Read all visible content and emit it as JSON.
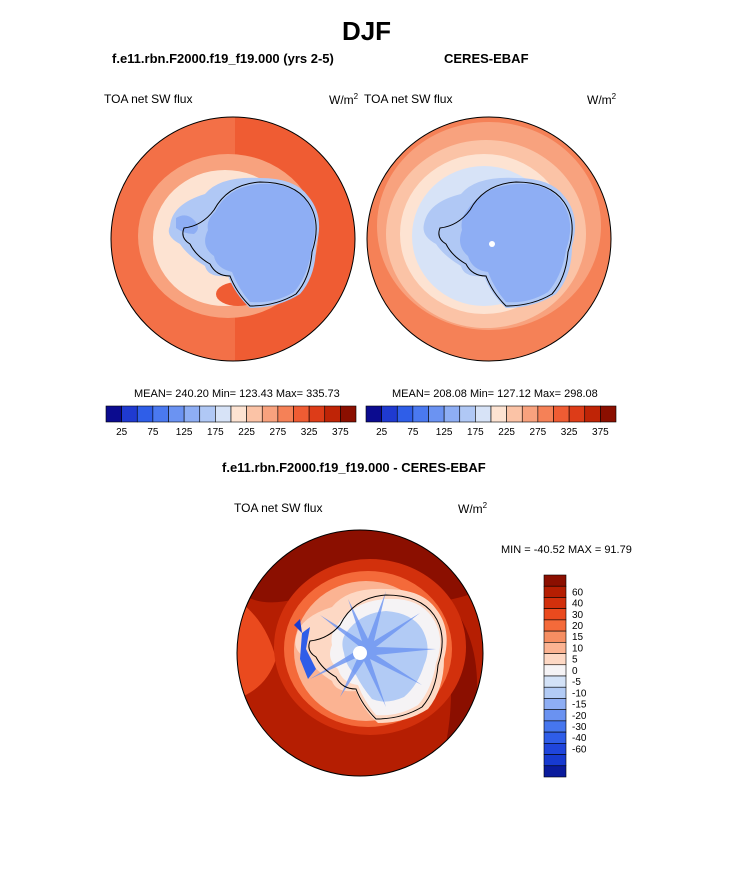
{
  "title": "DJF",
  "panels": [
    {
      "case": "f.e11.rbn.F2000.f19_f19.000 (yrs 2-5)",
      "variable": "TOA net SW flux",
      "units_base": "W/m",
      "units_exp": "2",
      "stats": "MEAN= 240.20  Min= 123.43  Max= 335.73"
    },
    {
      "case": "CERES-EBAF",
      "variable": "TOA net SW flux",
      "units_base": "W/m",
      "units_exp": "2",
      "stats": "MEAN= 208.08  Min= 127.12  Max= 298.08"
    }
  ],
  "colorbar_abs": {
    "colors": [
      "#0b0b8f",
      "#1f3ad0",
      "#2f5ee8",
      "#4a79f0",
      "#6b93f2",
      "#8eaef4",
      "#b0c8f5",
      "#d7e3f7",
      "#fde3d2",
      "#fbc3a6",
      "#f8a27e",
      "#f58157",
      "#ef5c33",
      "#dd3c18",
      "#bf2406",
      "#8b0f00"
    ],
    "ticks": [
      "25",
      "75",
      "125",
      "175",
      "225",
      "275",
      "325",
      "375"
    ]
  },
  "diff": {
    "title": "f.e11.rbn.F2000.f19_f19.000 - CERES-EBAF",
    "variable": "TOA net SW flux",
    "units_base": "W/m",
    "units_exp": "2",
    "minmax": "MIN = -40.52 MAX =  91.79",
    "colorbar": {
      "colors": [
        "#8b0f00",
        "#b51e02",
        "#d2300c",
        "#ea4a1e",
        "#f46a3a",
        "#f68e62",
        "#fbb392",
        "#fdd8c4",
        "#f5f3f5",
        "#d3e2f7",
        "#b2cbf5",
        "#8eaef4",
        "#6a92f1",
        "#4676ee",
        "#2f5de8",
        "#1f45dc",
        "#173ad0",
        "#0a1b9c"
      ],
      "labels": [
        "60",
        "40",
        "30",
        "20",
        "15",
        "10",
        "5",
        "0",
        "-5",
        "-10",
        "-15",
        "-20",
        "-30",
        "-40",
        "-60"
      ]
    }
  }
}
